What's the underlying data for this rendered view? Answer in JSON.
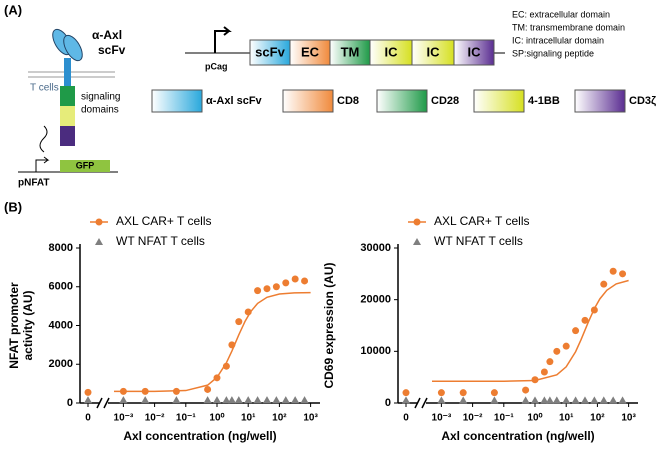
{
  "diagram": {
    "panel_a": "(A)",
    "panel_b": "(B)",
    "antibody_label": [
      "α-Axl",
      "scFv"
    ],
    "cell_label": "T cells",
    "signaling_label": [
      "signaling",
      "domains"
    ],
    "reporter_promoter": "pNFAT",
    "reporter_gene": "GFP",
    "construct_promoter": "pCag",
    "construct": [
      "scFv",
      "EC",
      "TM",
      "IC",
      "IC",
      "IC"
    ],
    "definitions": [
      "EC: extracellular domain",
      "TM: transmembrane domain",
      "IC: intracellular domain",
      "SP:signaling peptide"
    ],
    "key": [
      "α-Axl scFv",
      "CD8",
      "CD28",
      "4-1BB",
      "CD3ζ"
    ]
  },
  "chart_data": [
    {
      "type": "scatter",
      "xlabel": "Axl concentration (ng/well)",
      "ylabel": [
        "NFAT promoter",
        "activity (AU)"
      ],
      "xscale": "log",
      "xlim": [
        0.0005,
        2000
      ],
      "ylim": [
        0,
        8000
      ],
      "xticks": [
        0,
        {
          "value": 0.001,
          "label": "10⁻³"
        },
        {
          "value": 0.01,
          "label": "10⁻²"
        },
        {
          "value": 0.1,
          "label": "10⁻¹"
        },
        {
          "value": 1,
          "label": "10⁰"
        },
        {
          "value": 10,
          "label": "10¹"
        },
        {
          "value": 100,
          "label": "10²"
        },
        {
          "value": 1000,
          "label": "10³"
        }
      ],
      "yticks": [
        0,
        2000,
        4000,
        6000,
        8000
      ],
      "series": [
        {
          "name": "AXL CAR+ T cells",
          "color": "#ed7d31",
          "marker": "circle",
          "x": [
            0,
            0.001,
            0.005,
            0.05,
            0.5,
            1,
            2,
            3,
            5,
            10,
            20,
            40,
            80,
            160,
            320,
            640
          ],
          "values": [
            550,
            600,
            600,
            600,
            700,
            1300,
            1900,
            3000,
            4200,
            4700,
            5800,
            5900,
            6000,
            6200,
            6400,
            6300
          ]
        },
        {
          "name": "WT NFAT T cells",
          "color": "#7f7f7f",
          "marker": "triangle",
          "x": [
            0,
            0.001,
            0.005,
            0.05,
            0.5,
            1,
            2,
            3,
            5,
            10,
            20,
            40,
            80,
            160,
            320,
            640
          ],
          "values": [
            150,
            150,
            150,
            150,
            150,
            150,
            150,
            150,
            150,
            150,
            150,
            150,
            150,
            150,
            150,
            150
          ]
        },
        {
          "color": "#ed7d31",
          "marker": "line",
          "x": [
            0.0005,
            0.01,
            0.1,
            0.5,
            1,
            2,
            3,
            5,
            8,
            12,
            20,
            40,
            100,
            300,
            1000
          ],
          "values": [
            600,
            602,
            642,
            921,
            1322,
            2074,
            2682,
            3518,
            4227,
            4713,
            5141,
            5457,
            5624,
            5685,
            5697
          ]
        }
      ]
    },
    {
      "type": "scatter",
      "xlabel": "Axl concentration (ng/well)",
      "ylabel": [
        "CD69 expression (AU)"
      ],
      "xscale": "log",
      "xlim": [
        0.0005,
        2000
      ],
      "ylim": [
        0,
        30000
      ],
      "xticks": [
        0,
        {
          "value": 0.001,
          "label": "10⁻³"
        },
        {
          "value": 0.01,
          "label": "10⁻²"
        },
        {
          "value": 0.1,
          "label": "10⁻¹"
        },
        {
          "value": 1,
          "label": "10⁰"
        },
        {
          "value": 10,
          "label": "10¹"
        },
        {
          "value": 100,
          "label": "10²"
        },
        {
          "value": 1000,
          "label": "10³"
        }
      ],
      "yticks": [
        0,
        10000,
        20000,
        30000
      ],
      "series": [
        {
          "name": "AXL CAR+ T cells",
          "color": "#ed7d31",
          "marker": "circle",
          "x": [
            0,
            0.001,
            0.005,
            0.05,
            0.5,
            1,
            2,
            3,
            5,
            10,
            20,
            40,
            80,
            160,
            320,
            640
          ],
          "values": [
            2000,
            2000,
            2000,
            2000,
            2500,
            4500,
            6000,
            8000,
            10000,
            11000,
            14000,
            16000,
            18000,
            23000,
            25500,
            25000
          ]
        },
        {
          "name": "WT NFAT T cells",
          "color": "#7f7f7f",
          "marker": "triangle",
          "x": [
            0,
            0.001,
            0.005,
            0.05,
            0.5,
            1,
            2,
            3,
            5,
            10,
            20,
            40,
            80,
            160,
            320,
            640
          ],
          "values": [
            500,
            500,
            500,
            500,
            500,
            500,
            500,
            500,
            500,
            500,
            500,
            500,
            500,
            500,
            500,
            500
          ]
        },
        {
          "color": "#ed7d31",
          "marker": "line",
          "x": [
            0.0005,
            0.1,
            1,
            5,
            10,
            20,
            30,
            50,
            80,
            120,
            200,
            400,
            1000
          ],
          "values": [
            4200,
            4208,
            4362,
            5447,
            7004,
            9922,
            12286,
            15526,
            18278,
            20159,
            21822,
            23050,
            23703
          ]
        }
      ]
    }
  ]
}
